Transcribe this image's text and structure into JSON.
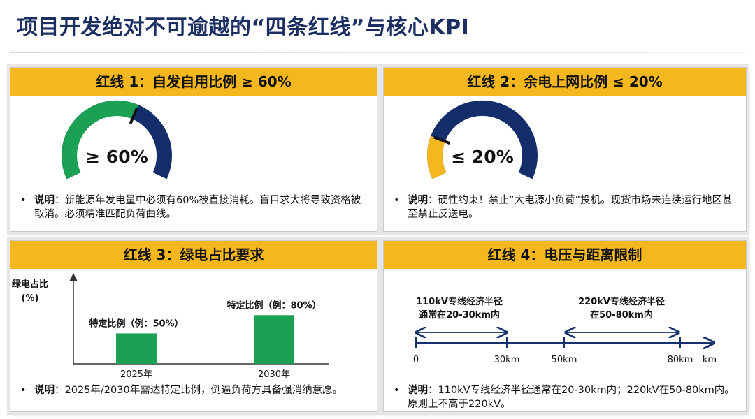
{
  "title": "项目开发绝对不可逾越的“四条红线”与核心KPI",
  "colors": {
    "accent": "#f4b71e",
    "navy": "#1b2f63",
    "green": "#1aa153",
    "gaugeNavy": "#142e6b",
    "gaugeYellow": "#f4b71e"
  },
  "cards": {
    "c1": {
      "header": "红线 1：自发自用比例 ≥ 60%",
      "gauge_label": "≥ 60%",
      "gauge_fraction": 0.6,
      "note_label": "说明",
      "note_text": "：新能源年发电量中必须有60%被直接消耗。盲目求大将导致资格被取消。必须精准匹配负荷曲线。"
    },
    "c2": {
      "header": "红线 2：余电上网比例 ≤ 20%",
      "gauge_label": "≤ 20%",
      "gauge_fraction": 0.2,
      "note_label": "说明",
      "note_text": "：硬性约束！禁止“大电源小负荷”投机。现货市场未连续运行地区甚至禁止反送电。"
    },
    "c3": {
      "header": "红线 3：绿电占比要求",
      "note_label": "说明",
      "note_text": "：2025年/2030年需达特定比例，倒逼负荷方具备强消纳意愿。"
    },
    "c4": {
      "header": "红线 4：电压与距离限制",
      "span1_line1": "110kV专线经济半径",
      "span1_line2": "通常在20-30km内",
      "span2_line1": "220kV专线经济半径",
      "span2_line2": "在50-80km内",
      "ticks": [
        "0",
        "30km",
        "50km",
        "80km"
      ],
      "unit": "km",
      "note_label": "说明",
      "note_text": "：110kV专线经济半径通常在20-30km内；220kV在50-80km内。原则上不高于220kV。"
    }
  },
  "chart_data": {
    "type": "bar",
    "title": "",
    "ylabel_line1": "绿电占比",
    "ylabel_line2": "(%)",
    "xlabel": "",
    "categories": [
      "2025年",
      "2030年"
    ],
    "values": [
      50,
      80
    ],
    "data_labels": [
      "特定比例（例：50%）",
      "特定比例（例：80%）"
    ],
    "ylim": [
      0,
      140
    ],
    "grid": false
  }
}
